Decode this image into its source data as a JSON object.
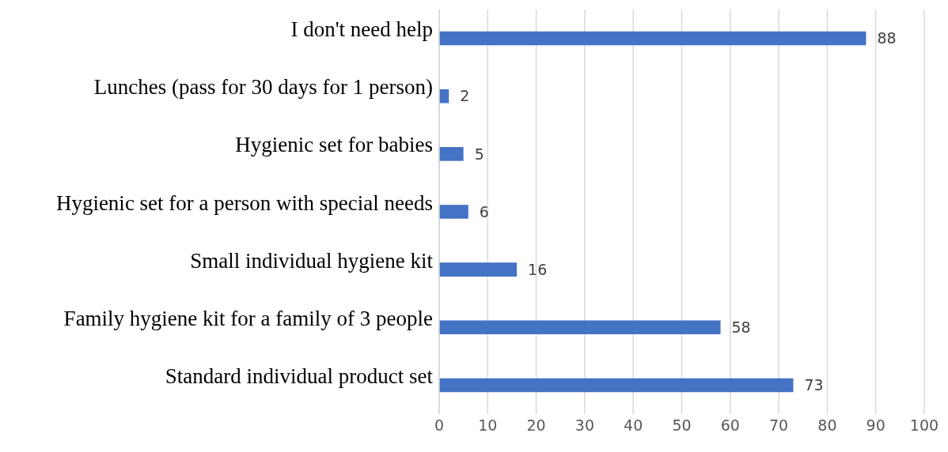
{
  "chart_data": {
    "type": "bar",
    "orientation": "horizontal",
    "categories": [
      "I don't need help",
      "Lunches (pass for 30 days for 1 person)",
      "Hygienic set for babies",
      "Hygienic set for a person with special needs",
      "Small individual hygiene kit",
      "Family hygiene kit for a family of 3 people",
      "Standard individual product set"
    ],
    "values": [
      88,
      2,
      5,
      6,
      16,
      58,
      73
    ],
    "color": "#4472c4",
    "xlim": [
      0,
      100
    ],
    "xticks": [
      0,
      10,
      20,
      30,
      40,
      50,
      60,
      70,
      80,
      90,
      100
    ],
    "grid": "x",
    "data_labels": true
  }
}
